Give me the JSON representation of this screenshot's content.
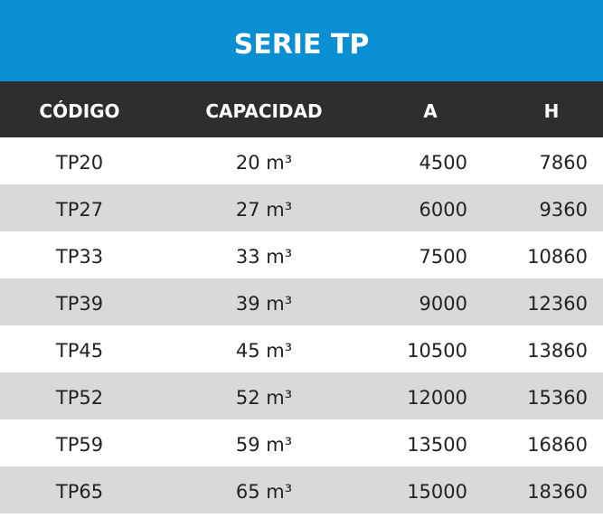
{
  "title": "SERIE TP",
  "table": {
    "columns": [
      "CÓDIGO",
      "CAPACIDAD",
      "A",
      "H"
    ],
    "rows": [
      [
        "TP20",
        "20 m³",
        "4500",
        "7860"
      ],
      [
        "TP27",
        "27 m³",
        "6000",
        "9360"
      ],
      [
        "TP33",
        "33 m³",
        "7500",
        "10860"
      ],
      [
        "TP39",
        "39 m³",
        "9000",
        "12360"
      ],
      [
        "TP45",
        "45 m³",
        "10500",
        "13860"
      ],
      [
        "TP52",
        "52 m³",
        "12000",
        "15360"
      ],
      [
        "TP59",
        "59 m³",
        "13500",
        "16860"
      ],
      [
        "TP65",
        "65 m³",
        "15000",
        "18360"
      ]
    ]
  }
}
